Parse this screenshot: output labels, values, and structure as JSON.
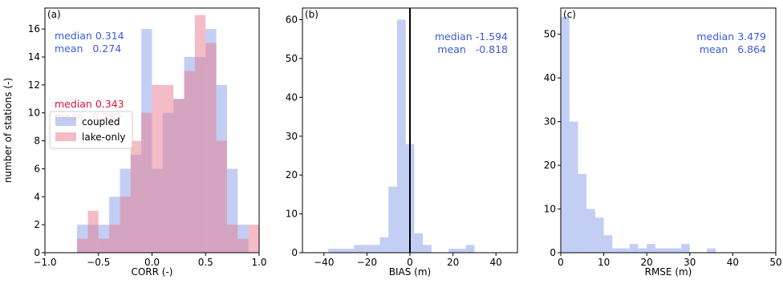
{
  "colors": {
    "coupled": "#7b93e6",
    "lake_only": "#e8798d",
    "text_blue": "#3b5bdb",
    "text_red": "#dc143c"
  },
  "chart_data": [
    {
      "type": "bar",
      "panel_label": "(a)",
      "xlabel": "CORR (-)",
      "ylabel": "number of stations (-)",
      "xlim": [
        -1.0,
        1.0
      ],
      "ylim": [
        0,
        17.5
      ],
      "xticks": [
        "−1.0",
        "−0.5",
        "0.0",
        "0.5",
        "1.0"
      ],
      "xtick_values": [
        -1.0,
        -0.5,
        0.0,
        0.5,
        1.0
      ],
      "yticks": [
        "0",
        "2",
        "4",
        "6",
        "8",
        "10",
        "12",
        "14",
        "16"
      ],
      "ytick_values": [
        0,
        2,
        4,
        6,
        8,
        10,
        12,
        14,
        16
      ],
      "bin_edges": [
        -0.7,
        -0.6,
        -0.5,
        -0.4,
        -0.3,
        -0.2,
        -0.1,
        0.0,
        0.1,
        0.2,
        0.3,
        0.4,
        0.5,
        0.6,
        0.7,
        0.8,
        0.9,
        1.0
      ],
      "series": [
        {
          "name": "coupled",
          "values": [
            2,
            2,
            2,
            4,
            6,
            7,
            16,
            6,
            10,
            11,
            14,
            14,
            16,
            12,
            6,
            2,
            0
          ]
        },
        {
          "name": "lake-only",
          "values": [
            1,
            3,
            1,
            2,
            4,
            8,
            10,
            12,
            12,
            11,
            13,
            17,
            15,
            8,
            2,
            1,
            2
          ]
        }
      ],
      "legend": [
        "coupled",
        "lake-only"
      ],
      "legend_position": "center-left",
      "annotations": [
        {
          "line1": "median 0.314",
          "line2": "mean   0.274",
          "color": "blue"
        },
        {
          "line1": "median 0.343",
          "line2": "mean   0.289",
          "color": "red"
        }
      ]
    },
    {
      "type": "bar",
      "panel_label": "(b)",
      "xlabel": "BIAS (m)",
      "xlim": [
        -50,
        50
      ],
      "ylim": [
        0,
        63
      ],
      "xticks": [
        "−40",
        "−20",
        "0",
        "20",
        "40"
      ],
      "xtick_values": [
        -40,
        -20,
        0,
        20,
        40
      ],
      "yticks": [
        "0",
        "10",
        "20",
        "30",
        "40",
        "50",
        "60"
      ],
      "ytick_values": [
        0,
        10,
        20,
        30,
        40,
        50,
        60
      ],
      "vline": 0,
      "bin_edges": [
        -50,
        -46,
        -42,
        -38,
        -34,
        -30,
        -26,
        -22,
        -18,
        -14,
        -10,
        -6,
        -2,
        2,
        6,
        10,
        14,
        18,
        22,
        26,
        30,
        34,
        38
      ],
      "series": [
        {
          "name": "coupled",
          "values": [
            0,
            0,
            0,
            1,
            1,
            1,
            2,
            2,
            2,
            4,
            17,
            60,
            28,
            5,
            2,
            0,
            0,
            1,
            1,
            2,
            0,
            0
          ]
        }
      ],
      "annotations": [
        {
          "line1": "median -1.594",
          "line2": "mean   -0.818",
          "color": "blue"
        }
      ]
    },
    {
      "type": "bar",
      "panel_label": "(c)",
      "xlabel": "RMSE (m)",
      "xlim": [
        0,
        50
      ],
      "ylim": [
        0,
        56
      ],
      "xticks": [
        "0",
        "10",
        "20",
        "30",
        "40",
        "50"
      ],
      "xtick_values": [
        0,
        10,
        20,
        30,
        40,
        50
      ],
      "yticks": [
        "0",
        "10",
        "20",
        "30",
        "40",
        "50"
      ],
      "ytick_values": [
        0,
        10,
        20,
        30,
        40,
        50
      ],
      "bin_edges": [
        0,
        2,
        4,
        6,
        8,
        10,
        12,
        14,
        16,
        18,
        20,
        22,
        24,
        26,
        28,
        30,
        32,
        34,
        36,
        38,
        40
      ],
      "series": [
        {
          "name": "coupled",
          "values": [
            54,
            30,
            18,
            10,
            8,
            4,
            1,
            1,
            2,
            1,
            2,
            1,
            1,
            1,
            2,
            0,
            0,
            1,
            0,
            0
          ]
        }
      ],
      "annotations": [
        {
          "line1": "median 3.479",
          "line2": "mean   6.864",
          "color": "blue"
        }
      ]
    }
  ]
}
